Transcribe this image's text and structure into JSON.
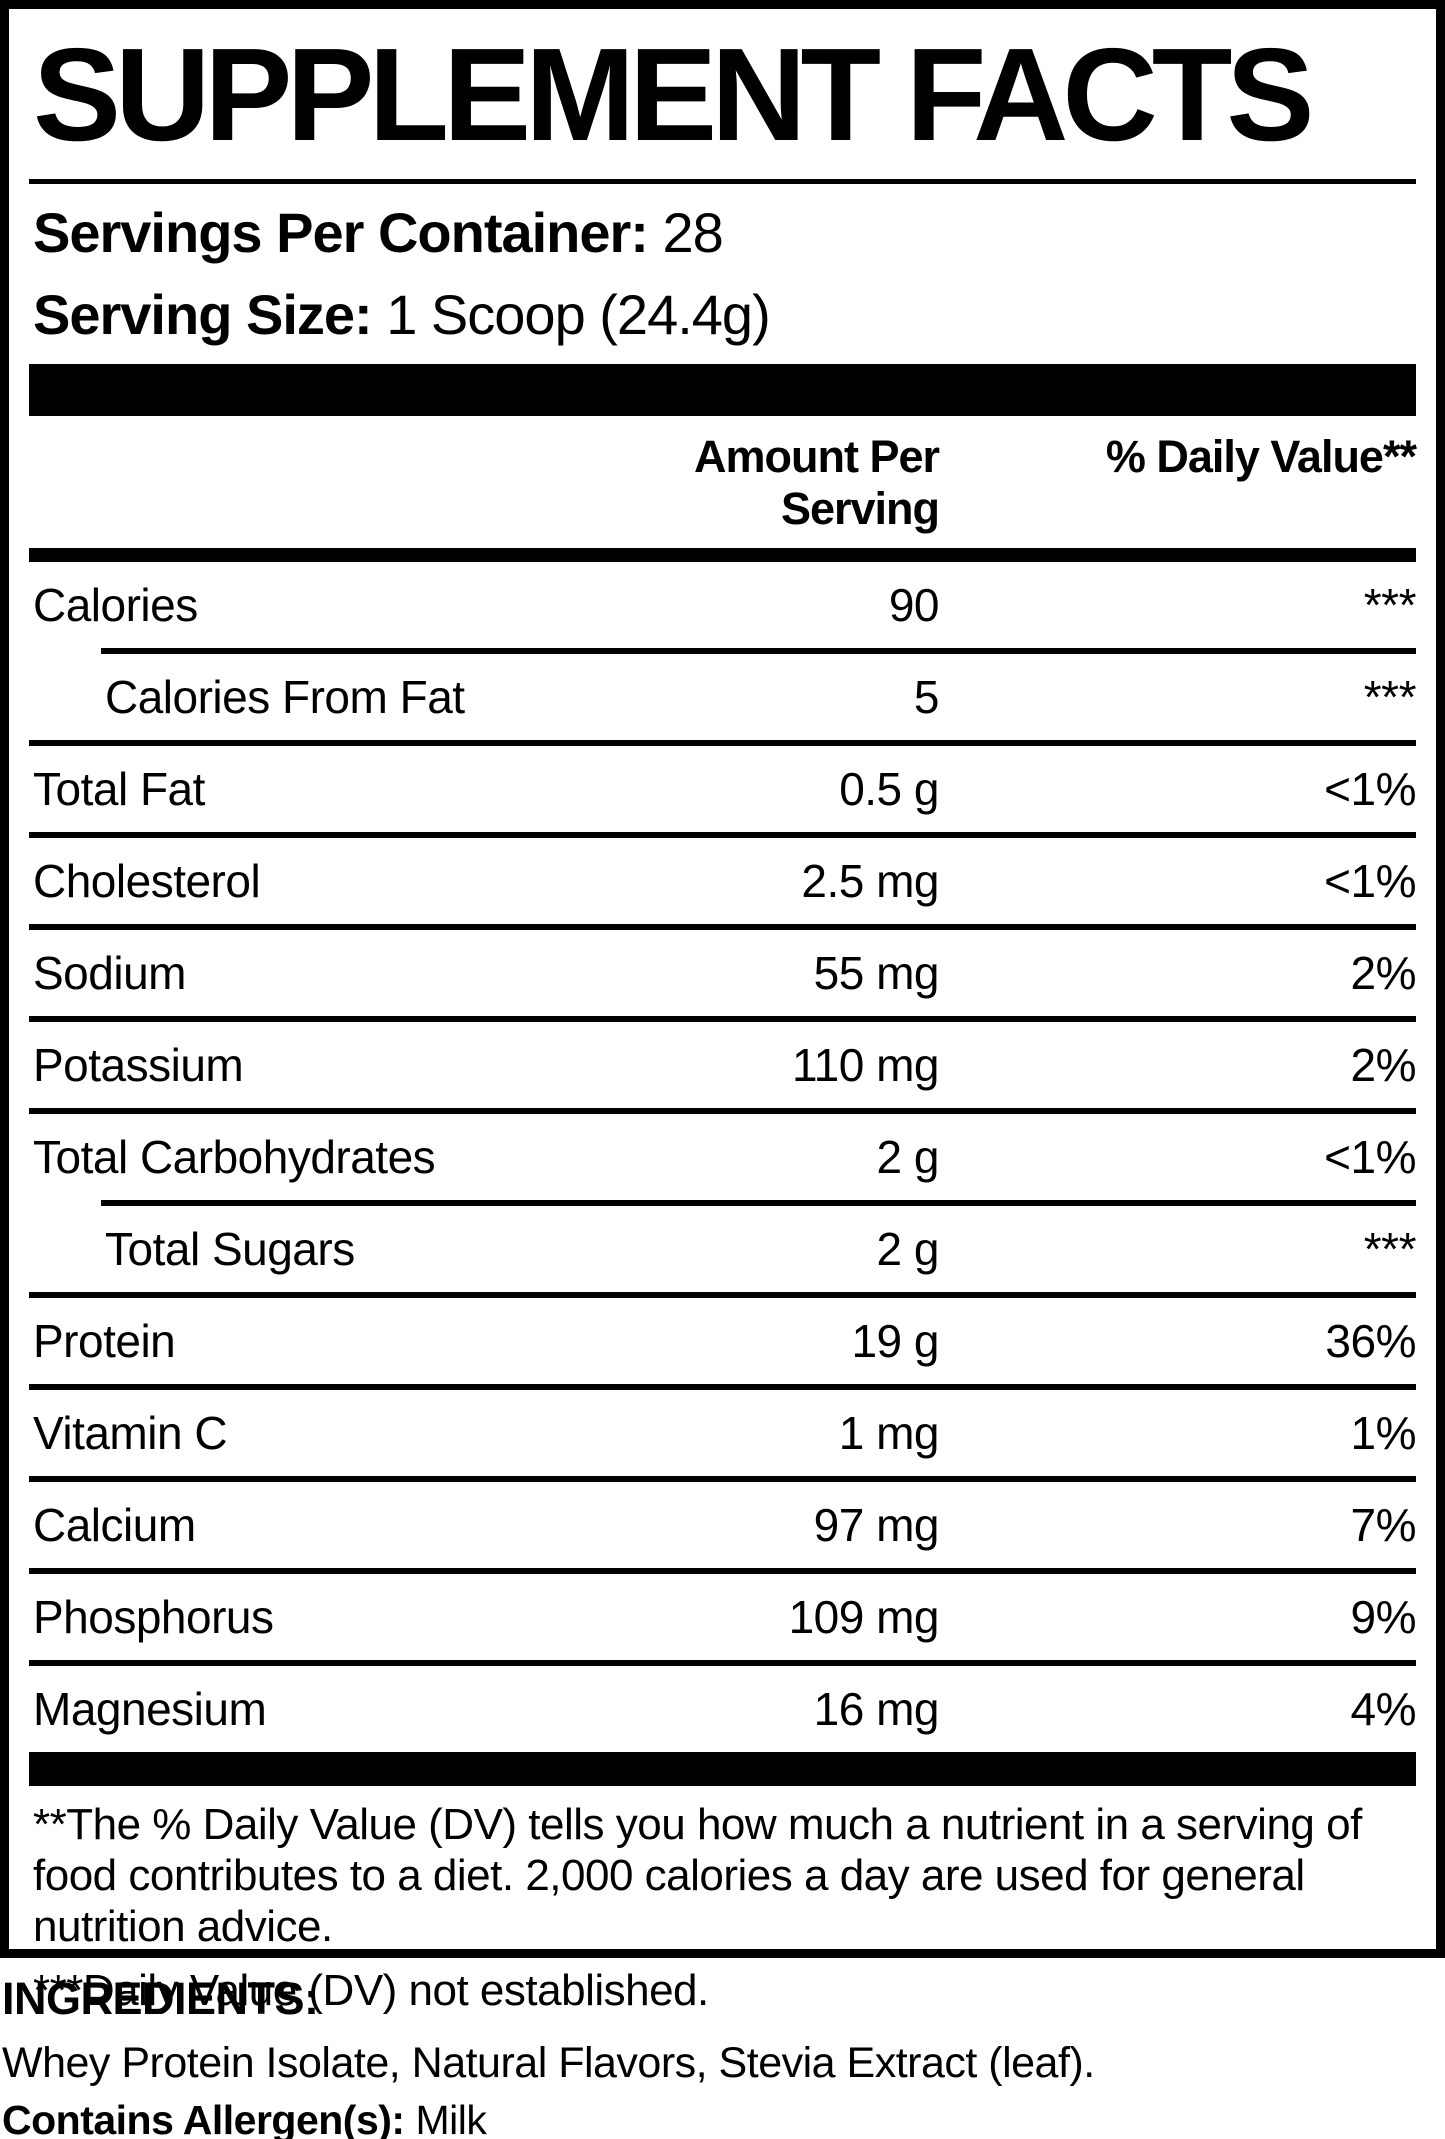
{
  "title": "SUPPLEMENT FACTS",
  "serving_info": {
    "servings_per_container_label": "Servings Per Container:",
    "servings_per_container_value": " 28",
    "serving_size_label": "Serving Size:",
    "serving_size_value": " 1 Scoop (24.4g)"
  },
  "table": {
    "header": {
      "amount": "Amount Per Serving",
      "dv": "% Daily Value**"
    },
    "rows": [
      {
        "name": "Calories",
        "amount": "90",
        "dv": "***",
        "indent": false
      },
      {
        "name": "Calories From Fat",
        "amount": "5",
        "dv": "***",
        "indent": true
      },
      {
        "name": "Total Fat",
        "amount": "0.5 g",
        "dv": "<1%",
        "indent": false
      },
      {
        "name": "Cholesterol",
        "amount": "2.5 mg",
        "dv": "<1%",
        "indent": false
      },
      {
        "name": "Sodium",
        "amount": "55 mg",
        "dv": "2%",
        "indent": false
      },
      {
        "name": "Potassium",
        "amount": "110 mg",
        "dv": "2%",
        "indent": false
      },
      {
        "name": "Total Carbohydrates",
        "amount": "2 g",
        "dv": "<1%",
        "indent": false
      },
      {
        "name": "Total Sugars",
        "amount": "2 g",
        "dv": "***",
        "indent": true
      },
      {
        "name": "Protein",
        "amount": "19 g",
        "dv": "36%",
        "indent": false
      },
      {
        "name": "Vitamin C",
        "amount": "1 mg",
        "dv": "1%",
        "indent": false
      },
      {
        "name": "Calcium",
        "amount": "97 mg",
        "dv": "7%",
        "indent": false
      },
      {
        "name": "Phosphorus",
        "amount": "109 mg",
        "dv": "9%",
        "indent": false
      },
      {
        "name": "Magnesium",
        "amount": "16 mg",
        "dv": "4%",
        "indent": false
      }
    ]
  },
  "footnotes": {
    "dv_note": "**The % Daily Value (DV) tells you how much a nutrient in a serving of food contributes to a diet. 2,000 calories a day are used for general nutrition advice.",
    "not_established_note": "***Daily Value (DV) not established."
  },
  "ingredients": {
    "heading": "INGREDIENTS:",
    "list": "Whey Protein Isolate, Natural Flavors, Stevia Extract (leaf).",
    "allergen_label": "Contains Allergen(s):",
    "allergen_value": " Milk"
  },
  "colors": {
    "text": "#000000",
    "background": "#ffffff"
  }
}
